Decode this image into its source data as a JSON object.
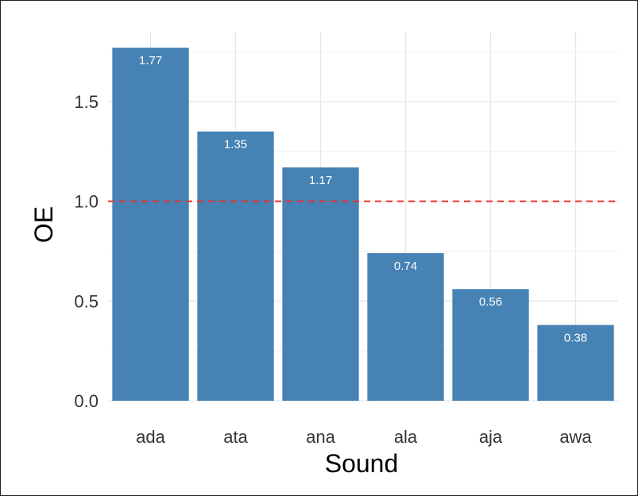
{
  "chart_data": {
    "type": "bar",
    "categories": [
      "ada",
      "ata",
      "ana",
      "ala",
      "aja",
      "awa"
    ],
    "values": [
      1.77,
      1.35,
      1.17,
      0.74,
      0.56,
      0.38
    ],
    "value_labels": [
      "1.77",
      "1.35",
      "1.17",
      "0.74",
      "0.56",
      "0.38"
    ],
    "xlabel": "Sound",
    "ylabel": "OE",
    "ylim": [
      0,
      1.85
    ],
    "yticks": [
      0.0,
      0.5,
      1.0,
      1.5
    ],
    "ytick_labels": [
      "0.0",
      "0.5",
      "1.0",
      "1.5"
    ],
    "reference_line": {
      "y": 1.0,
      "style": "dashed",
      "color": "#e8312f"
    },
    "bar_color": "#4682b4",
    "grid": true
  }
}
